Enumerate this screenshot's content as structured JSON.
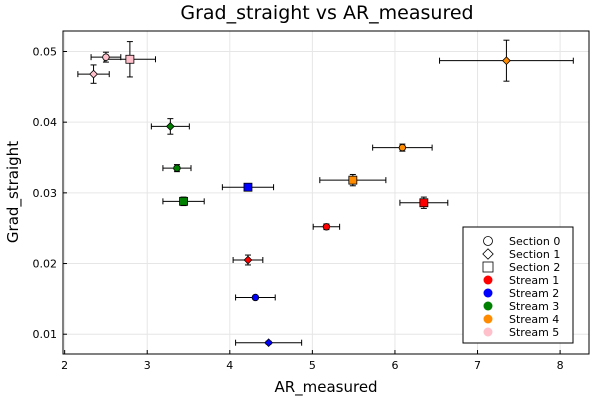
{
  "chart_data": {
    "type": "scatter",
    "title": "Grad_straight vs AR_measured",
    "xlabel": "AR_measured",
    "ylabel": "Grad_straight",
    "xlim": [
      1.98,
      8.35
    ],
    "ylim": [
      0.0072,
      0.0529
    ],
    "xticks": [
      2,
      3,
      4,
      5,
      6,
      7,
      8
    ],
    "yticks": [
      0.01,
      0.02,
      0.03,
      0.04,
      0.05
    ],
    "xtick_labels": [
      "2",
      "3",
      "4",
      "5",
      "6",
      "7",
      "8"
    ],
    "ytick_labels": [
      "0.01",
      "0.02",
      "0.03",
      "0.04",
      "0.05"
    ],
    "grid": true,
    "legend_position": "bottom-right",
    "colors": {
      "Stream 1": "#ff0000",
      "Stream 2": "#0000ff",
      "Stream 3": "#008000",
      "Stream 4": "#ff8c00",
      "Stream 5": "#ffc0cb"
    },
    "legend": [
      {
        "label": "Section 0",
        "kind": "shape",
        "shape": "circle"
      },
      {
        "label": "Section 1",
        "kind": "shape",
        "shape": "diamond"
      },
      {
        "label": "Section 2",
        "kind": "shape",
        "shape": "square"
      },
      {
        "label": "Stream 1",
        "kind": "color",
        "stream": "Stream 1"
      },
      {
        "label": "Stream 2",
        "kind": "color",
        "stream": "Stream 2"
      },
      {
        "label": "Stream 3",
        "kind": "color",
        "stream": "Stream 3"
      },
      {
        "label": "Stream 4",
        "kind": "color",
        "stream": "Stream 4"
      },
      {
        "label": "Stream 5",
        "kind": "color",
        "stream": "Stream 5"
      }
    ],
    "points": [
      {
        "stream": "Stream 1",
        "section": "Section 0",
        "x": 5.17,
        "y": 0.0252,
        "xerr": 0.16,
        "yerr": 0.0004
      },
      {
        "stream": "Stream 1",
        "section": "Section 1",
        "x": 4.22,
        "y": 0.0205,
        "xerr": 0.18,
        "yerr": 0.0007
      },
      {
        "stream": "Stream 1",
        "section": "Section 2",
        "x": 6.35,
        "y": 0.0286,
        "xerr": 0.29,
        "yerr": 0.0008
      },
      {
        "stream": "Stream 2",
        "section": "Section 0",
        "x": 4.31,
        "y": 0.0152,
        "xerr": 0.24,
        "yerr": 0.0002
      },
      {
        "stream": "Stream 2",
        "section": "Section 1",
        "x": 4.47,
        "y": 0.0088,
        "xerr": 0.4,
        "yerr": 0.0002
      },
      {
        "stream": "Stream 2",
        "section": "Section 2",
        "x": 4.22,
        "y": 0.0308,
        "xerr": 0.31,
        "yerr": 0.0005
      },
      {
        "stream": "Stream 3",
        "section": "Section 0",
        "x": 3.36,
        "y": 0.0335,
        "xerr": 0.17,
        "yerr": 0.0005
      },
      {
        "stream": "Stream 3",
        "section": "Section 1",
        "x": 3.28,
        "y": 0.0394,
        "xerr": 0.23,
        "yerr": 0.0011
      },
      {
        "stream": "Stream 3",
        "section": "Section 2",
        "x": 3.44,
        "y": 0.0288,
        "xerr": 0.25,
        "yerr": 0.0006
      },
      {
        "stream": "Stream 4",
        "section": "Section 0",
        "x": 6.09,
        "y": 0.0364,
        "xerr": 0.36,
        "yerr": 0.0005
      },
      {
        "stream": "Stream 4",
        "section": "Section 1",
        "x": 7.35,
        "y": 0.0487,
        "xerr": 0.81,
        "yerr": 0.0029
      },
      {
        "stream": "Stream 4",
        "section": "Section 2",
        "x": 5.49,
        "y": 0.0318,
        "xerr": 0.4,
        "yerr": 0.0008
      },
      {
        "stream": "Stream 5",
        "section": "Section 0",
        "x": 2.5,
        "y": 0.0492,
        "xerr": 0.18,
        "yerr": 0.0007
      },
      {
        "stream": "Stream 5",
        "section": "Section 1",
        "x": 2.35,
        "y": 0.0468,
        "xerr": 0.19,
        "yerr": 0.0013
      },
      {
        "stream": "Stream 5",
        "section": "Section 2",
        "x": 2.79,
        "y": 0.0489,
        "xerr": 0.31,
        "yerr": 0.0025
      }
    ]
  }
}
